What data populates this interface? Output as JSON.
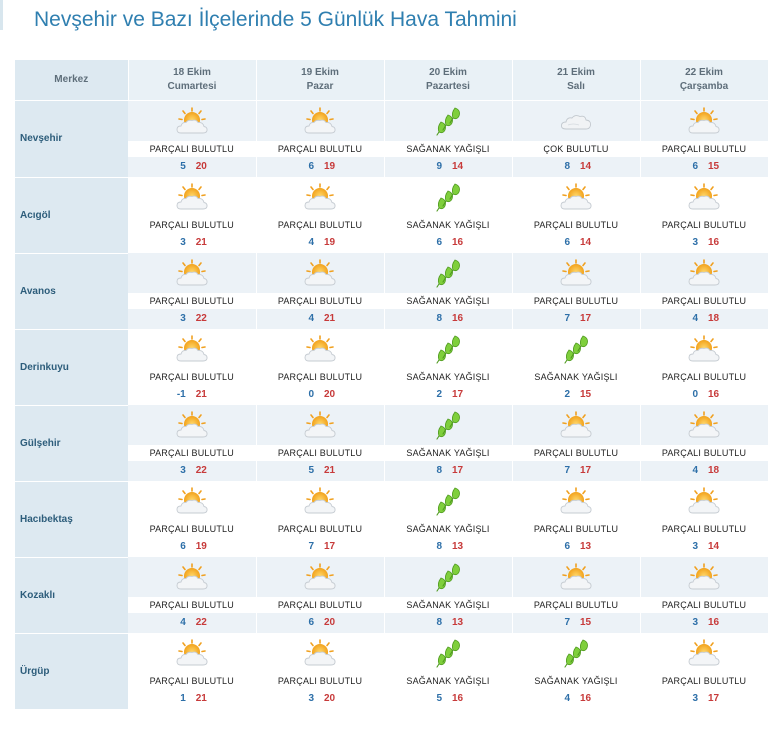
{
  "page_title": "Nevşehir ve Bazı İlçelerinde 5 Günlük Hava Tahmini",
  "header": {
    "corner": "Merkez",
    "days": [
      {
        "date": "18 Ekim",
        "weekday": "Cumartesi"
      },
      {
        "date": "19 Ekim",
        "weekday": "Pazar"
      },
      {
        "date": "20 Ekim",
        "weekday": "Pazartesi"
      },
      {
        "date": "21 Ekim",
        "weekday": "Salı"
      },
      {
        "date": "22 Ekim",
        "weekday": "Çarşamba"
      }
    ]
  },
  "locations": [
    {
      "name": "Nevşehir",
      "days": [
        {
          "icon": "partly-cloudy",
          "desc": "PARÇALI BULUTLU",
          "min": "5",
          "max": "20"
        },
        {
          "icon": "partly-cloudy",
          "desc": "PARÇALI BULUTLU",
          "min": "6",
          "max": "19"
        },
        {
          "icon": "showers",
          "desc": "SAĞANAK YAĞIŞLI",
          "min": "9",
          "max": "14"
        },
        {
          "icon": "cloudy",
          "desc": "ÇOK BULUTLU",
          "min": "8",
          "max": "14"
        },
        {
          "icon": "partly-cloudy",
          "desc": "PARÇALI BULUTLU",
          "min": "6",
          "max": "15"
        }
      ]
    },
    {
      "name": "Acıgöl",
      "days": [
        {
          "icon": "partly-cloudy",
          "desc": "PARÇALI BULUTLU",
          "min": "3",
          "max": "21"
        },
        {
          "icon": "partly-cloudy",
          "desc": "PARÇALI BULUTLU",
          "min": "4",
          "max": "19"
        },
        {
          "icon": "showers",
          "desc": "SAĞANAK YAĞIŞLI",
          "min": "6",
          "max": "16"
        },
        {
          "icon": "partly-cloudy",
          "desc": "PARÇALI BULUTLU",
          "min": "6",
          "max": "14"
        },
        {
          "icon": "partly-cloudy",
          "desc": "PARÇALI BULUTLU",
          "min": "3",
          "max": "16"
        }
      ]
    },
    {
      "name": "Avanos",
      "days": [
        {
          "icon": "partly-cloudy",
          "desc": "PARÇALI BULUTLU",
          "min": "3",
          "max": "22"
        },
        {
          "icon": "partly-cloudy",
          "desc": "PARÇALI BULUTLU",
          "min": "4",
          "max": "21"
        },
        {
          "icon": "showers",
          "desc": "SAĞANAK YAĞIŞLI",
          "min": "8",
          "max": "16"
        },
        {
          "icon": "partly-cloudy",
          "desc": "PARÇALI BULUTLU",
          "min": "7",
          "max": "17"
        },
        {
          "icon": "partly-cloudy",
          "desc": "PARÇALI BULUTLU",
          "min": "4",
          "max": "18"
        }
      ]
    },
    {
      "name": "Derinkuyu",
      "days": [
        {
          "icon": "partly-cloudy",
          "desc": "PARÇALI BULUTLU",
          "min": "-1",
          "max": "21"
        },
        {
          "icon": "partly-cloudy",
          "desc": "PARÇALI BULUTLU",
          "min": "0",
          "max": "20"
        },
        {
          "icon": "showers",
          "desc": "SAĞANAK YAĞIŞLI",
          "min": "2",
          "max": "17"
        },
        {
          "icon": "showers",
          "desc": "SAĞANAK YAĞIŞLI",
          "min": "2",
          "max": "15"
        },
        {
          "icon": "partly-cloudy",
          "desc": "PARÇALI BULUTLU",
          "min": "0",
          "max": "16"
        }
      ]
    },
    {
      "name": "Gülşehir",
      "days": [
        {
          "icon": "partly-cloudy",
          "desc": "PARÇALI BULUTLU",
          "min": "3",
          "max": "22"
        },
        {
          "icon": "partly-cloudy",
          "desc": "PARÇALI BULUTLU",
          "min": "5",
          "max": "21"
        },
        {
          "icon": "showers",
          "desc": "SAĞANAK YAĞIŞLI",
          "min": "8",
          "max": "17"
        },
        {
          "icon": "partly-cloudy",
          "desc": "PARÇALI BULUTLU",
          "min": "7",
          "max": "17"
        },
        {
          "icon": "partly-cloudy",
          "desc": "PARÇALI BULUTLU",
          "min": "4",
          "max": "18"
        }
      ]
    },
    {
      "name": "Hacıbektaş",
      "days": [
        {
          "icon": "partly-cloudy",
          "desc": "PARÇALI BULUTLU",
          "min": "6",
          "max": "19"
        },
        {
          "icon": "partly-cloudy",
          "desc": "PARÇALI BULUTLU",
          "min": "7",
          "max": "17"
        },
        {
          "icon": "showers",
          "desc": "SAĞANAK YAĞIŞLI",
          "min": "8",
          "max": "13"
        },
        {
          "icon": "partly-cloudy",
          "desc": "PARÇALI BULUTLU",
          "min": "6",
          "max": "13"
        },
        {
          "icon": "partly-cloudy",
          "desc": "PARÇALI BULUTLU",
          "min": "3",
          "max": "14"
        }
      ]
    },
    {
      "name": "Kozaklı",
      "days": [
        {
          "icon": "partly-cloudy",
          "desc": "PARÇALI BULUTLU",
          "min": "4",
          "max": "22"
        },
        {
          "icon": "partly-cloudy",
          "desc": "PARÇALI BULUTLU",
          "min": "6",
          "max": "20"
        },
        {
          "icon": "showers",
          "desc": "SAĞANAK YAĞIŞLI",
          "min": "8",
          "max": "13"
        },
        {
          "icon": "partly-cloudy",
          "desc": "PARÇALI BULUTLU",
          "min": "7",
          "max": "15"
        },
        {
          "icon": "partly-cloudy",
          "desc": "PARÇALI BULUTLU",
          "min": "3",
          "max": "16"
        }
      ]
    },
    {
      "name": "Ürgüp",
      "days": [
        {
          "icon": "partly-cloudy",
          "desc": "PARÇALI BULUTLU",
          "min": "1",
          "max": "21"
        },
        {
          "icon": "partly-cloudy",
          "desc": "PARÇALI BULUTLU",
          "min": "3",
          "max": "20"
        },
        {
          "icon": "showers",
          "desc": "SAĞANAK YAĞIŞLI",
          "min": "5",
          "max": "16"
        },
        {
          "icon": "showers",
          "desc": "SAĞANAK YAĞIŞLI",
          "min": "4",
          "max": "16"
        },
        {
          "icon": "partly-cloudy",
          "desc": "PARÇALI BULUTLU",
          "min": "3",
          "max": "17"
        }
      ]
    }
  ],
  "colors": {
    "title": "#2f7fb0",
    "min_temp": "#2d6fa8",
    "max_temp": "#c73a3a",
    "header_bg": "#e9f1f6",
    "row_shade": "#ecf2f7"
  }
}
